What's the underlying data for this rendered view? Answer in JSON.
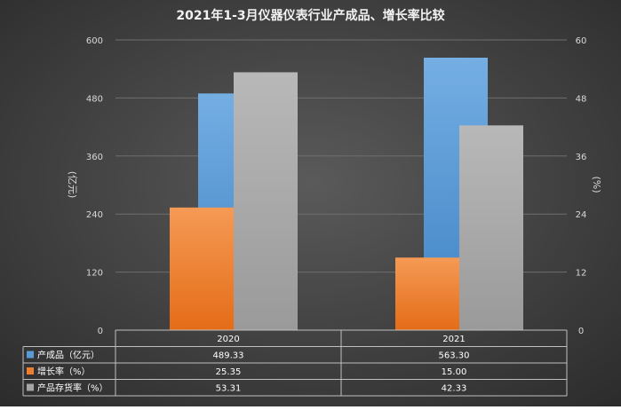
{
  "chart_data": {
    "type": "bar",
    "title": "2021年1-3月仪器仪表行业产成品、增长率比较",
    "categories": [
      "2020",
      "2021"
    ],
    "y_left": {
      "label": "(亿元)",
      "ticks": [
        "0",
        "120",
        "240",
        "360",
        "480",
        "600"
      ],
      "range": [
        0,
        600
      ]
    },
    "y_right": {
      "label": "(%)",
      "ticks": [
        "0",
        "12",
        "24",
        "36",
        "48",
        "60"
      ],
      "range": [
        0,
        60
      ]
    },
    "series": [
      {
        "name": "产成品（亿元）",
        "axis": "left",
        "color": "#5b9bd5",
        "values": [
          489.33,
          563.3
        ],
        "labels": [
          "489.33",
          "563.30"
        ]
      },
      {
        "name": "增长率（%）",
        "axis": "right",
        "color": "#ed7d31",
        "values": [
          25.35,
          15.0
        ],
        "labels": [
          "25.35",
          "15.00"
        ]
      },
      {
        "name": "产品存货率（%）",
        "axis": "right",
        "color": "#a5a5a5",
        "values": [
          53.31,
          42.33
        ],
        "labels": [
          "53.31",
          "42.33"
        ]
      }
    ],
    "grid": true,
    "legend": "data-table"
  }
}
